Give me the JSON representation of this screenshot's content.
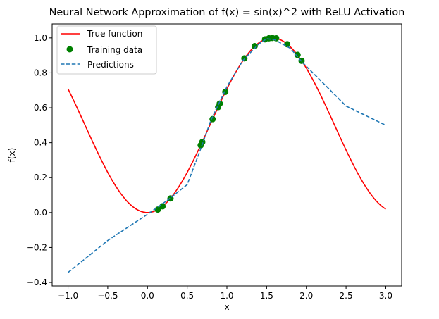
{
  "chart_data": {
    "type": "line",
    "title": "Neural Network Approximation of f(x) = sin(x)^2 with ReLU Activation",
    "xlabel": "x",
    "ylabel": "f(x)",
    "xlim": [
      -1.2,
      3.2
    ],
    "ylim": [
      -0.42,
      1.08
    ],
    "grid": false,
    "legend_position": "upper-left",
    "x_ticks": [
      -1.0,
      -0.5,
      0.0,
      0.5,
      1.0,
      1.5,
      2.0,
      2.5,
      3.0
    ],
    "x_tick_labels": [
      "−1.0",
      "−0.5",
      "0.0",
      "0.5",
      "1.0",
      "1.5",
      "2.0",
      "2.5",
      "3.0"
    ],
    "y_ticks": [
      -0.4,
      -0.2,
      0.0,
      0.2,
      0.4,
      0.6,
      0.8,
      1.0
    ],
    "y_tick_labels": [
      "−0.4",
      "−0.2",
      "0.0",
      "0.2",
      "0.4",
      "0.6",
      "0.8",
      "1.0"
    ],
    "series": [
      {
        "name": "True function",
        "kind": "line",
        "color": "#ff0000",
        "dash": "solid",
        "function": "sin(x)^2",
        "x_range": [
          -1.0,
          3.0
        ],
        "samples": 161
      },
      {
        "name": "Training data",
        "kind": "scatter",
        "color": "#008000",
        "x": [
          0.13,
          0.19,
          0.29,
          0.67,
          0.69,
          0.82,
          0.89,
          0.91,
          0.98,
          1.22,
          1.35,
          1.48,
          1.53,
          1.57,
          1.62,
          1.76,
          1.89,
          1.94
        ],
        "y": [
          0.017,
          0.036,
          0.081,
          0.385,
          0.404,
          0.535,
          0.604,
          0.624,
          0.691,
          0.883,
          0.953,
          0.992,
          0.998,
          1.0,
          0.998,
          0.964,
          0.903,
          0.869
        ]
      },
      {
        "name": "Predictions",
        "kind": "line",
        "color": "#1f77b4",
        "dash": "dashed",
        "x": [
          -1.0,
          -0.5,
          0.0,
          0.25,
          0.5,
          0.65,
          0.8,
          1.0,
          1.2,
          1.4,
          1.5,
          1.6,
          1.8,
          1.95,
          2.5,
          3.0
        ],
        "y": [
          -0.343,
          -0.16,
          -0.01,
          0.07,
          0.16,
          0.34,
          0.53,
          0.72,
          0.87,
          0.965,
          0.995,
          0.99,
          0.94,
          0.86,
          0.61,
          0.5
        ]
      }
    ]
  }
}
